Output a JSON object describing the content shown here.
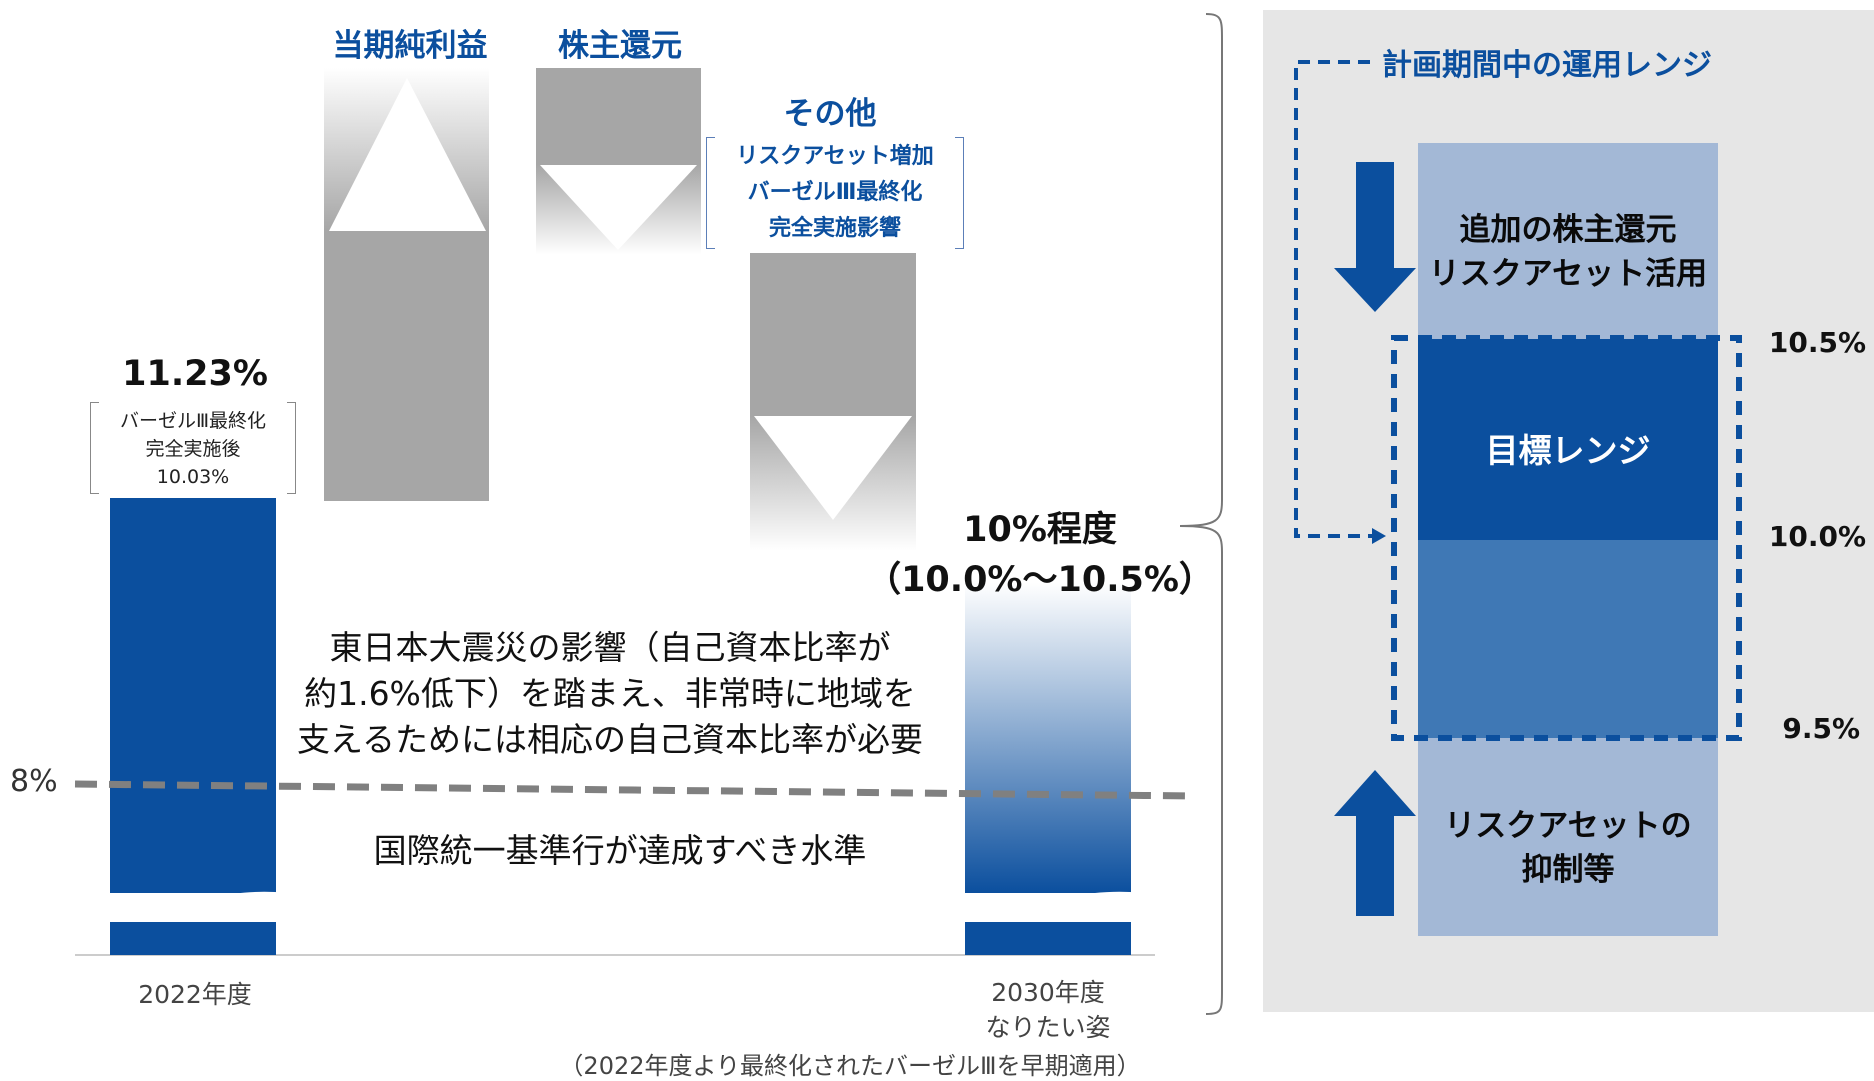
{
  "chart_data": {
    "type": "bar",
    "title": "",
    "y_unit": "%",
    "reference_line": {
      "label": "8%",
      "value": 8,
      "description": "国際統一基準行が達成すべき水準"
    },
    "bars": {
      "start": {
        "category": "2022年度",
        "value_label": "11.23%",
        "value": 11.23,
        "note_lines": [
          "バーゼルⅢ最終化",
          "完全実施後",
          "10.03%"
        ]
      },
      "end": {
        "category_lines": [
          "2030年度",
          "なりたい姿"
        ],
        "value_label_lines": [
          "10%程度",
          "（10.0%〜10.5%）"
        ],
        "value_low": 10.0,
        "value_high": 10.5
      }
    },
    "steps": [
      {
        "label": "当期純利益",
        "direction": "up"
      },
      {
        "label": "株主還元",
        "direction": "down"
      },
      {
        "label": "その他",
        "direction": "down",
        "note_lines": [
          "リスクアセット増加",
          "バーゼルⅢ最終化",
          "完全実施影響"
        ]
      }
    ],
    "center_text_lines": [
      "東日本大震災の影響（自己資本比率が",
      "約1.6%低下）を踏まえ、非常時に地域を",
      "支えるためには相応の自己資本比率が必要"
    ],
    "footnote": "（2022年度より最終化されたバーゼルⅢを早期適用）"
  },
  "panel": {
    "legend": "計画期間中の運用レンジ",
    "top_action_lines": [
      "追加の株主還元",
      "リスクアセット活用"
    ],
    "target_label": "目標レンジ",
    "bottom_action_lines": [
      "リスクアセットの",
      "抑制等"
    ],
    "levels": [
      "10.5%",
      "10.0%",
      "9.5%"
    ]
  },
  "colors": {
    "bar_blue": "#0b4f9e",
    "grey_block": "#a6a6a6",
    "panel_bg": "#e6e6e6",
    "panel_light_blue": "#a3b8d6",
    "target_dark": "#0b4f9e",
    "target_mid": "#3f78b5",
    "dashed_line": "#7f7f7f"
  }
}
